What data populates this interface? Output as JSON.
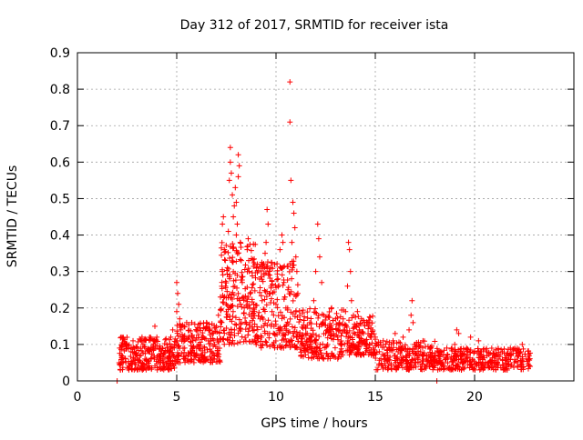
{
  "chart_data": {
    "type": "scatter",
    "title": "Day 312 of 2017, SRMTID for receiver ista",
    "xlabel": "GPS time / hours",
    "ylabel": "SRMTID / TECUs",
    "xlim": [
      0,
      25
    ],
    "ylim": [
      0,
      0.9
    ],
    "xticks": [
      0,
      5,
      10,
      15,
      20
    ],
    "yticks": [
      0,
      0.1,
      0.2,
      0.3,
      0.4,
      0.5,
      0.6,
      0.7,
      0.8,
      0.9
    ],
    "ytick_labels": [
      "0",
      "0.1",
      "0.2",
      "0.3",
      "0.4",
      "0.5",
      "0.6",
      "0.7",
      "0.8",
      "0.9"
    ],
    "grid": true,
    "marker": "+",
    "color": "#ff0000",
    "series": [
      {
        "name": "SRMTID",
        "points": [
          [
            2.0,
            0.0
          ],
          [
            18.1,
            0.0
          ],
          [
            2.1,
            0.05
          ],
          [
            2.2,
            0.09
          ],
          [
            2.3,
            0.12
          ],
          [
            2.4,
            0.06
          ],
          [
            2.5,
            0.1
          ],
          [
            2.6,
            0.04
          ],
          [
            2.7,
            0.08
          ],
          [
            2.8,
            0.11
          ],
          [
            2.9,
            0.06
          ],
          [
            3.0,
            0.09
          ],
          [
            3.1,
            0.05
          ],
          [
            3.2,
            0.07
          ],
          [
            3.3,
            0.1
          ],
          [
            3.4,
            0.06
          ],
          [
            3.5,
            0.04
          ],
          [
            3.6,
            0.08
          ],
          [
            3.7,
            0.06
          ],
          [
            3.8,
            0.09
          ],
          [
            3.9,
            0.15
          ],
          [
            4.0,
            0.12
          ],
          [
            4.1,
            0.07
          ],
          [
            4.2,
            0.05
          ],
          [
            4.3,
            0.09
          ],
          [
            4.4,
            0.06
          ],
          [
            4.5,
            0.1
          ],
          [
            4.6,
            0.08
          ],
          [
            4.7,
            0.12
          ],
          [
            4.8,
            0.14
          ],
          [
            4.9,
            0.1
          ],
          [
            5.0,
            0.19
          ],
          [
            5.0,
            0.27
          ],
          [
            5.05,
            0.24
          ],
          [
            5.1,
            0.21
          ],
          [
            5.15,
            0.17
          ],
          [
            5.2,
            0.14
          ],
          [
            5.3,
            0.12
          ],
          [
            5.4,
            0.09
          ],
          [
            5.5,
            0.16
          ],
          [
            5.6,
            0.12
          ],
          [
            5.7,
            0.08
          ],
          [
            5.8,
            0.11
          ],
          [
            5.9,
            0.07
          ],
          [
            6.0,
            0.14
          ],
          [
            6.1,
            0.1
          ],
          [
            6.2,
            0.07
          ],
          [
            6.3,
            0.12
          ],
          [
            6.4,
            0.09
          ],
          [
            6.5,
            0.16
          ],
          [
            6.6,
            0.11
          ],
          [
            6.7,
            0.08
          ],
          [
            6.8,
            0.13
          ],
          [
            6.9,
            0.1
          ],
          [
            7.0,
            0.15
          ],
          [
            7.1,
            0.18
          ],
          [
            7.2,
            0.23
          ],
          [
            7.3,
            0.3
          ],
          [
            7.3,
            0.43
          ],
          [
            7.35,
            0.45
          ],
          [
            7.4,
            0.36
          ],
          [
            7.45,
            0.26
          ],
          [
            7.5,
            0.19
          ],
          [
            7.5,
            0.21
          ],
          [
            7.55,
            0.31
          ],
          [
            7.6,
            0.41
          ],
          [
            7.65,
            0.55
          ],
          [
            7.7,
            0.6
          ],
          [
            7.7,
            0.64
          ],
          [
            7.75,
            0.57
          ],
          [
            7.8,
            0.51
          ],
          [
            7.85,
            0.45
          ],
          [
            7.9,
            0.48
          ],
          [
            7.95,
            0.53
          ],
          [
            8.0,
            0.49
          ],
          [
            8.0,
            0.4
          ],
          [
            8.05,
            0.43
          ],
          [
            8.1,
            0.56
          ],
          [
            8.1,
            0.62
          ],
          [
            8.15,
            0.59
          ],
          [
            8.2,
            0.38
          ],
          [
            8.25,
            0.33
          ],
          [
            8.3,
            0.27
          ],
          [
            8.35,
            0.23
          ],
          [
            8.4,
            0.2
          ],
          [
            8.5,
            0.16
          ],
          [
            8.55,
            0.36
          ],
          [
            8.6,
            0.39
          ],
          [
            8.65,
            0.3
          ],
          [
            8.7,
            0.24
          ],
          [
            8.8,
            0.19
          ],
          [
            8.9,
            0.14
          ],
          [
            9.0,
            0.1
          ],
          [
            9.1,
            0.12
          ],
          [
            9.2,
            0.17
          ],
          [
            9.3,
            0.22
          ],
          [
            9.4,
            0.29
          ],
          [
            9.45,
            0.35
          ],
          [
            9.5,
            0.38
          ],
          [
            9.55,
            0.47
          ],
          [
            9.6,
            0.43
          ],
          [
            9.65,
            0.3
          ],
          [
            9.7,
            0.24
          ],
          [
            9.75,
            0.26
          ],
          [
            9.8,
            0.19
          ],
          [
            9.9,
            0.15
          ],
          [
            10.0,
            0.21
          ],
          [
            10.1,
            0.28
          ],
          [
            10.2,
            0.36
          ],
          [
            10.25,
            0.31
          ],
          [
            10.3,
            0.4
          ],
          [
            10.35,
            0.38
          ],
          [
            10.4,
            0.27
          ],
          [
            10.45,
            0.23
          ],
          [
            10.5,
            0.2
          ],
          [
            10.6,
            0.25
          ],
          [
            10.7,
            0.82
          ],
          [
            10.7,
            0.71
          ],
          [
            10.75,
            0.55
          ],
          [
            10.8,
            0.38
          ],
          [
            10.85,
            0.49
          ],
          [
            10.9,
            0.46
          ],
          [
            10.95,
            0.42
          ],
          [
            11.0,
            0.34
          ],
          [
            11.05,
            0.3
          ],
          [
            11.1,
            0.24
          ],
          [
            11.2,
            0.18
          ],
          [
            11.3,
            0.12
          ],
          [
            11.4,
            0.09
          ],
          [
            11.5,
            0.13
          ],
          [
            11.6,
            0.1
          ],
          [
            11.7,
            0.16
          ],
          [
            11.8,
            0.12
          ],
          [
            11.9,
            0.22
          ],
          [
            12.0,
            0.3
          ],
          [
            12.1,
            0.43
          ],
          [
            12.15,
            0.39
          ],
          [
            12.2,
            0.34
          ],
          [
            12.3,
            0.27
          ],
          [
            12.4,
            0.18
          ],
          [
            12.5,
            0.13
          ],
          [
            12.6,
            0.1
          ],
          [
            12.7,
            0.15
          ],
          [
            12.8,
            0.2
          ],
          [
            12.9,
            0.13
          ],
          [
            13.0,
            0.17
          ],
          [
            13.1,
            0.12
          ],
          [
            13.2,
            0.16
          ],
          [
            13.3,
            0.1
          ],
          [
            13.4,
            0.14
          ],
          [
            13.5,
            0.19
          ],
          [
            13.6,
            0.26
          ],
          [
            13.65,
            0.38
          ],
          [
            13.7,
            0.36
          ],
          [
            13.75,
            0.3
          ],
          [
            13.8,
            0.22
          ],
          [
            13.9,
            0.18
          ],
          [
            14.0,
            0.15
          ],
          [
            14.1,
            0.19
          ],
          [
            14.2,
            0.14
          ],
          [
            14.3,
            0.17
          ],
          [
            14.4,
            0.13
          ],
          [
            14.5,
            0.11
          ],
          [
            14.6,
            0.16
          ],
          [
            14.7,
            0.1
          ],
          [
            14.8,
            0.13
          ],
          [
            14.9,
            0.09
          ],
          [
            15.0,
            0.12
          ],
          [
            15.2,
            0.08
          ],
          [
            15.4,
            0.11
          ],
          [
            15.6,
            0.07
          ],
          [
            15.8,
            0.1
          ],
          [
            16.0,
            0.13
          ],
          [
            16.2,
            0.09
          ],
          [
            16.4,
            0.12
          ],
          [
            16.6,
            0.08
          ],
          [
            16.7,
            0.14
          ],
          [
            16.8,
            0.18
          ],
          [
            16.85,
            0.22
          ],
          [
            16.9,
            0.16
          ],
          [
            17.0,
            0.1
          ],
          [
            17.2,
            0.07
          ],
          [
            17.4,
            0.11
          ],
          [
            17.6,
            0.06
          ],
          [
            17.8,
            0.09
          ],
          [
            18.0,
            0.06
          ],
          [
            18.2,
            0.08
          ],
          [
            18.4,
            0.05
          ],
          [
            18.6,
            0.09
          ],
          [
            18.8,
            0.06
          ],
          [
            19.0,
            0.1
          ],
          [
            19.1,
            0.14
          ],
          [
            19.2,
            0.13
          ],
          [
            19.4,
            0.07
          ],
          [
            19.6,
            0.09
          ],
          [
            19.8,
            0.12
          ],
          [
            20.0,
            0.08
          ],
          [
            20.2,
            0.11
          ],
          [
            20.4,
            0.06
          ],
          [
            20.6,
            0.08
          ],
          [
            20.8,
            0.05
          ],
          [
            21.0,
            0.07
          ],
          [
            21.2,
            0.06
          ],
          [
            21.4,
            0.08
          ],
          [
            21.6,
            0.06
          ],
          [
            21.8,
            0.09
          ],
          [
            22.0,
            0.05
          ],
          [
            22.2,
            0.08
          ],
          [
            22.4,
            0.1
          ],
          [
            22.6,
            0.06
          ],
          [
            22.8,
            0.04
          ]
        ]
      }
    ],
    "bulk_bands": [
      {
        "x_start": 2.1,
        "x_end": 5.0,
        "y_low": 0.03,
        "y_high": 0.12,
        "count": 260
      },
      {
        "x_start": 5.0,
        "x_end": 7.2,
        "y_low": 0.05,
        "y_high": 0.16,
        "count": 200
      },
      {
        "x_start": 7.2,
        "x_end": 9.0,
        "y_low": 0.1,
        "y_high": 0.38,
        "count": 220
      },
      {
        "x_start": 9.0,
        "x_end": 11.2,
        "y_low": 0.09,
        "y_high": 0.33,
        "count": 220
      },
      {
        "x_start": 11.2,
        "x_end": 13.5,
        "y_low": 0.06,
        "y_high": 0.2,
        "count": 200
      },
      {
        "x_start": 13.5,
        "x_end": 15.0,
        "y_low": 0.07,
        "y_high": 0.18,
        "count": 140
      },
      {
        "x_start": 15.0,
        "x_end": 18.0,
        "y_low": 0.03,
        "y_high": 0.11,
        "count": 230
      },
      {
        "x_start": 18.0,
        "x_end": 22.8,
        "y_low": 0.03,
        "y_high": 0.09,
        "count": 330
      }
    ]
  }
}
